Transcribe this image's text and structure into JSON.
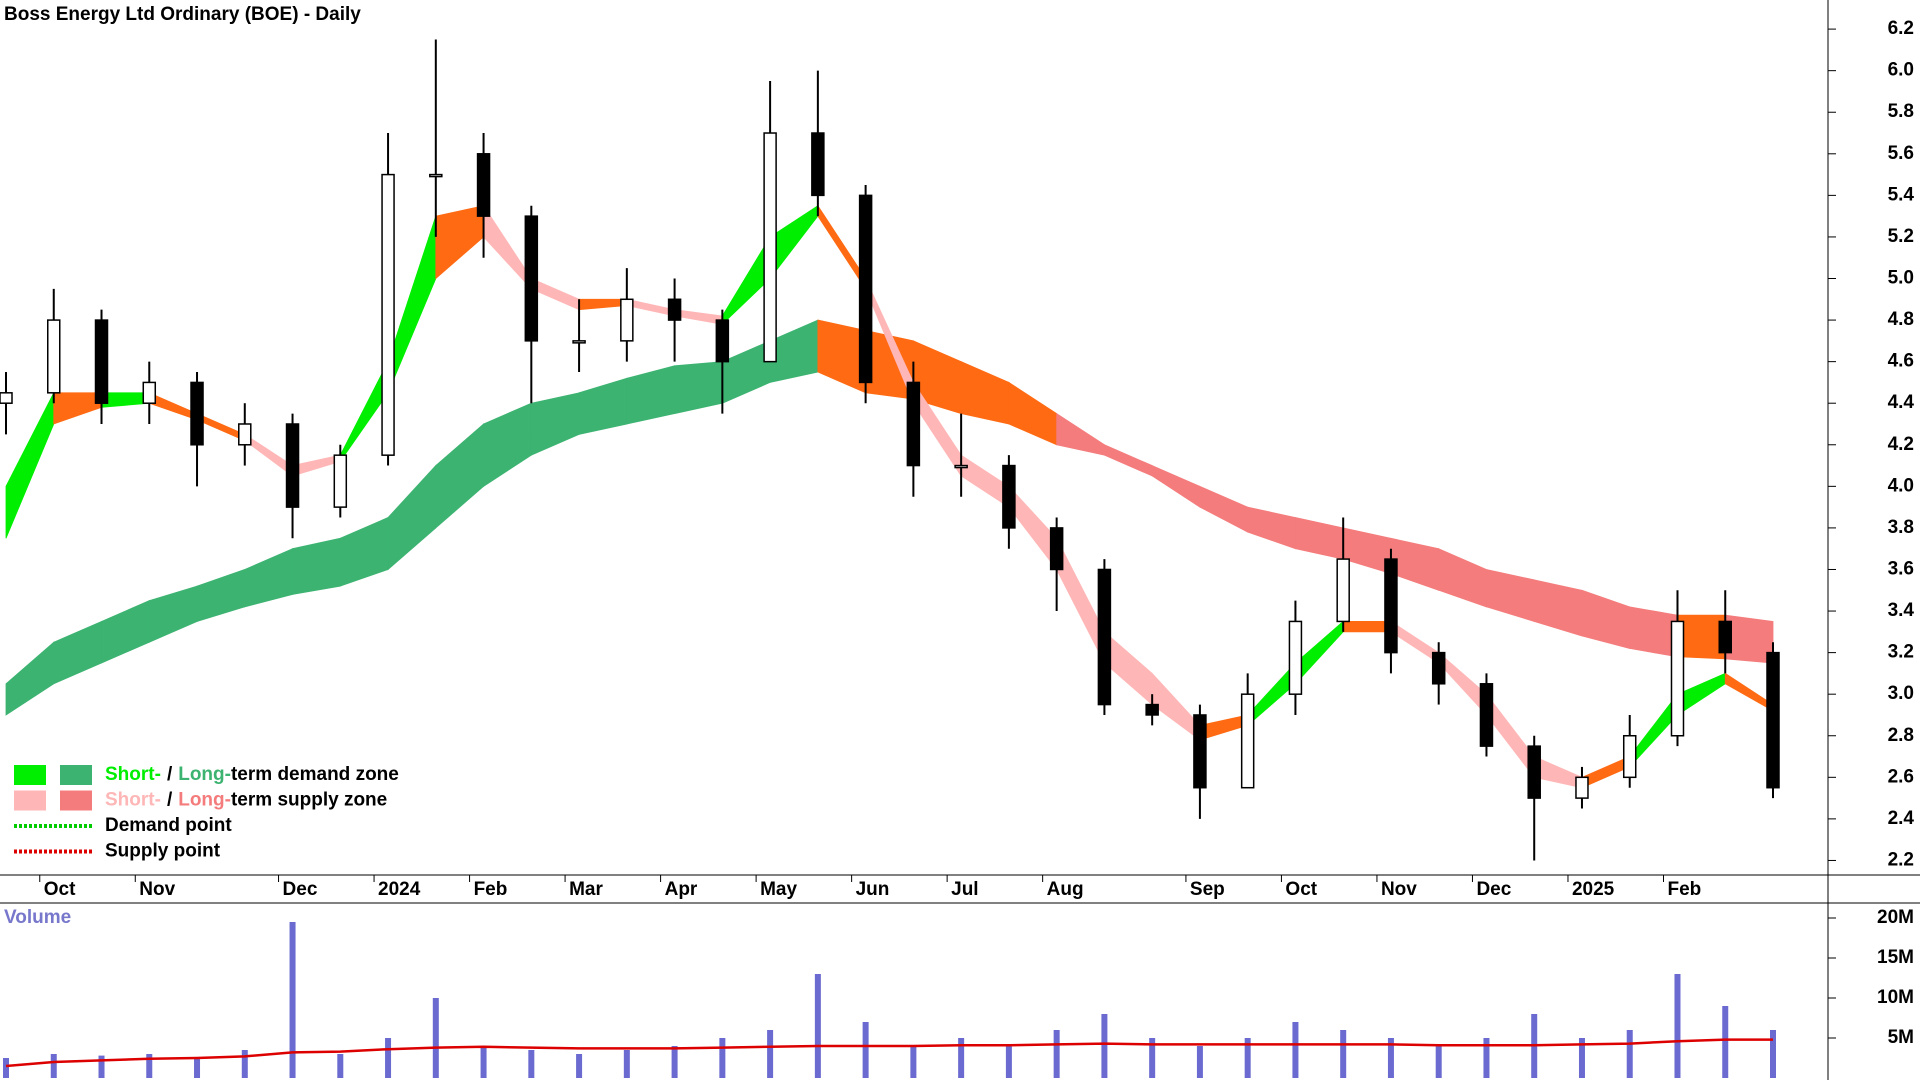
{
  "chart_data": [
    {
      "type": "candlestick",
      "title": "Boss Energy Ltd Ordinary (BOE) - Daily",
      "categories": [
        null,
        "Oct",
        null,
        "Nov",
        null,
        null,
        "Dec",
        null,
        "2024",
        null,
        "Feb",
        null,
        "Mar",
        null,
        "Apr",
        null,
        "May",
        null,
        "Jun",
        null,
        "Jul",
        null,
        "Aug",
        null,
        null,
        "Sep",
        null,
        "Oct",
        null,
        "Nov",
        null,
        "Dec",
        null,
        "2025",
        null,
        "Feb",
        null,
        null
      ],
      "open": [
        4.4,
        4.45,
        4.8,
        4.4,
        4.5,
        4.2,
        4.3,
        3.9,
        4.15,
        5.5,
        5.6,
        5.3,
        4.7,
        4.7,
        4.9,
        4.8,
        4.6,
        5.7,
        5.4,
        4.5,
        4.1,
        4.1,
        3.8,
        3.6,
        2.95,
        2.9,
        2.55,
        3.0,
        3.35,
        3.65,
        3.2,
        3.05,
        2.75,
        2.5,
        2.6,
        2.8,
        3.35,
        3.2
      ],
      "high": [
        4.55,
        4.95,
        4.85,
        4.6,
        4.55,
        4.4,
        4.35,
        4.2,
        5.7,
        6.15,
        5.7,
        5.35,
        4.9,
        5.05,
        5.0,
        4.85,
        5.95,
        6.0,
        5.45,
        4.6,
        4.35,
        4.15,
        3.85,
        3.65,
        3.0,
        2.95,
        3.1,
        3.45,
        3.85,
        3.7,
        3.25,
        3.1,
        2.8,
        2.65,
        2.9,
        3.5,
        3.5,
        3.25
      ],
      "low": [
        4.25,
        4.4,
        4.3,
        4.3,
        4.0,
        4.1,
        3.75,
        3.85,
        4.1,
        5.2,
        5.1,
        4.4,
        4.55,
        4.6,
        4.6,
        4.35,
        4.6,
        5.3,
        4.4,
        3.95,
        3.95,
        3.7,
        3.4,
        2.9,
        2.85,
        2.4,
        2.55,
        2.9,
        3.3,
        3.1,
        2.95,
        2.7,
        2.2,
        2.45,
        2.55,
        2.75,
        3.1,
        2.5
      ],
      "close": [
        4.45,
        4.8,
        4.4,
        4.5,
        4.2,
        4.3,
        3.9,
        4.15,
        5.5,
        5.5,
        5.3,
        4.7,
        4.7,
        4.9,
        4.8,
        4.6,
        5.7,
        5.4,
        4.5,
        4.1,
        4.1,
        3.8,
        3.6,
        2.95,
        2.9,
        2.55,
        3.0,
        3.35,
        3.65,
        3.2,
        3.05,
        2.75,
        2.5,
        2.6,
        2.8,
        3.35,
        3.2,
        2.55
      ],
      "bands": [
        {
          "upper": [
            3.05,
            3.25,
            3.35,
            3.45,
            3.52,
            3.6,
            3.7,
            3.75,
            3.85,
            4.1,
            4.3,
            4.4,
            4.45,
            4.52,
            4.58,
            4.6,
            4.7,
            4.8,
            4.75,
            4.7,
            4.6,
            4.5,
            4.35,
            4.2,
            4.1,
            4.0,
            3.9,
            3.85,
            3.8,
            3.75,
            3.7,
            3.6,
            3.55,
            3.5,
            3.42,
            3.38,
            3.38,
            3.35
          ],
          "lower": [
            2.9,
            3.05,
            3.15,
            3.25,
            3.35,
            3.42,
            3.48,
            3.52,
            3.6,
            3.8,
            4.0,
            4.15,
            4.25,
            4.3,
            4.35,
            4.4,
            4.5,
            4.55,
            4.45,
            4.42,
            4.35,
            4.3,
            4.2,
            4.15,
            4.05,
            3.9,
            3.78,
            3.7,
            3.65,
            3.58,
            3.5,
            3.42,
            3.35,
            3.28,
            3.22,
            3.18,
            3.17,
            3.15
          ],
          "colors": [
            "#3cb371",
            "#3cb371",
            "#3cb371",
            "#3cb371",
            "#3cb371",
            "#3cb371",
            "#3cb371",
            "#3cb371",
            "#3cb371",
            "#3cb371",
            "#3cb371",
            "#3cb371",
            "#3cb371",
            "#3cb371",
            "#3cb371",
            "#3cb371",
            "#3cb371",
            "#3cb371",
            "#ff6a13",
            "#ff6a13",
            "#ff6a13",
            "#ff6a13",
            "#ff6a13",
            "#f47c7c",
            "#f47c7c",
            "#f47c7c",
            "#f47c7c",
            "#f47c7c",
            "#f47c7c",
            "#f47c7c",
            "#f47c7c",
            "#f47c7c",
            "#f47c7c",
            "#f47c7c",
            "#f47c7c",
            "#f47c7c",
            "#ff6a13",
            "#f47c7c"
          ]
        },
        {
          "upper": [
            4.0,
            4.45,
            4.45,
            4.45,
            4.35,
            4.25,
            4.1,
            4.15,
            4.6,
            5.3,
            5.35,
            5.0,
            4.9,
            4.9,
            4.85,
            4.82,
            5.2,
            5.35,
            5.0,
            4.5,
            4.15,
            4.0,
            3.75,
            3.3,
            3.1,
            2.85,
            2.9,
            3.15,
            3.35,
            3.35,
            3.2,
            3.0,
            2.7,
            2.6,
            2.7,
            3.0,
            3.1,
            2.95
          ],
          "lower": [
            3.75,
            4.3,
            4.38,
            4.4,
            4.32,
            4.22,
            4.05,
            4.12,
            4.45,
            5.0,
            5.2,
            4.95,
            4.85,
            4.87,
            4.82,
            4.78,
            5.0,
            5.3,
            4.95,
            4.4,
            4.05,
            3.9,
            3.6,
            3.15,
            2.95,
            2.78,
            2.85,
            3.05,
            3.3,
            3.3,
            3.15,
            2.9,
            2.6,
            2.55,
            2.65,
            2.9,
            3.05,
            2.92
          ],
          "colors": [
            "#00ee00",
            "#00ee00",
            "#ff6a13",
            "#00ee00",
            "#ff6a13",
            "#ff6a13",
            "#ffb6b6",
            "#ffb6b6",
            "#00ee00",
            "#00ee00",
            "#ff6a13",
            "#ffb6b6",
            "#ffb6b6",
            "#ff6a13",
            "#ffb6b6",
            "#ffb6b6",
            "#00ee00",
            "#00ee00",
            "#ff6a13",
            "#ffb6b6",
            "#ffb6b6",
            "#ffb6b6",
            "#ffb6b6",
            "#ffb6b6",
            "#ffb6b6",
            "#ffb6b6",
            "#ff6a13",
            "#00ee00",
            "#00ee00",
            "#ff6a13",
            "#ffb6b6",
            "#ffb6b6",
            "#ffb6b6",
            "#ffb6b6",
            "#ff6a13",
            "#00ee00",
            "#00ee00",
            "#ff6a13"
          ]
        }
      ],
      "ylim": [
        2.13,
        6.34
      ],
      "yticks": [
        2.2,
        2.4,
        2.6,
        2.8,
        {
          "value": 3,
          "label": "3.0"
        },
        3.2,
        3.4,
        3.6,
        3.8,
        {
          "value": 4,
          "label": "4.0"
        },
        4.2,
        4.4,
        4.6,
        4.8,
        {
          "value": 5,
          "label": "5.0"
        },
        5.2,
        5.4,
        5.6,
        5.8,
        {
          "value": 6,
          "label": "6.0"
        },
        6.2
      ],
      "legend": [
        {
          "swatches": [
            "#00ee00",
            "#3cb371"
          ],
          "parts": [
            {
              "text": "Short-",
              "color": "#00ee00"
            },
            {
              "text": "/",
              "color": "#000000"
            },
            {
              "text": "Long-",
              "color": "#3cb371"
            },
            {
              "text": "term demand zone",
              "color": "#000000"
            }
          ]
        },
        {
          "swatches": [
            "#ffb6b6",
            "#f47c7c"
          ],
          "parts": [
            {
              "text": "Short-",
              "color": "#ffb6b6"
            },
            {
              "text": "/",
              "color": "#000000"
            },
            {
              "text": "Long-",
              "color": "#f47c7c"
            },
            {
              "text": "term supply zone",
              "color": "#000000"
            }
          ]
        },
        {
          "dotted": "#00cc00",
          "parts": [
            {
              "text": "Demand point",
              "color": "#000000"
            }
          ]
        },
        {
          "dotted": "#dd0000",
          "parts": [
            {
              "text": "Supply point",
              "color": "#000000"
            }
          ]
        }
      ]
    },
    {
      "type": "bar",
      "title": "Volume",
      "values": [
        2.5,
        3,
        2.8,
        3,
        2.5,
        3.5,
        19.5,
        3,
        5,
        10,
        4,
        3.5,
        3,
        3.5,
        4,
        5,
        6,
        13,
        7,
        4,
        5,
        4,
        6,
        8,
        5,
        4,
        5,
        7,
        6,
        5,
        4,
        5,
        8,
        5,
        6,
        13,
        9,
        6
      ],
      "color": "#6a6ad0",
      "average": {
        "values": [
          1.5,
          2,
          2.2,
          2.4,
          2.5,
          2.7,
          3.2,
          3.3,
          3.6,
          3.8,
          3.9,
          3.8,
          3.7,
          3.7,
          3.7,
          3.8,
          3.9,
          4,
          4,
          4,
          4.1,
          4.1,
          4.2,
          4.3,
          4.2,
          4.2,
          4.2,
          4.2,
          4.2,
          4.2,
          4.1,
          4.1,
          4.1,
          4.2,
          4.3,
          4.6,
          4.8,
          4.8
        ],
        "color": "#dd0000"
      },
      "ylim": [
        0,
        21.75
      ],
      "yticks": [
        {
          "value": 5,
          "label": "5M"
        },
        {
          "value": 10,
          "label": "10M"
        },
        {
          "value": 15,
          "label": "15M"
        },
        {
          "value": 20,
          "label": "20M"
        }
      ]
    }
  ]
}
